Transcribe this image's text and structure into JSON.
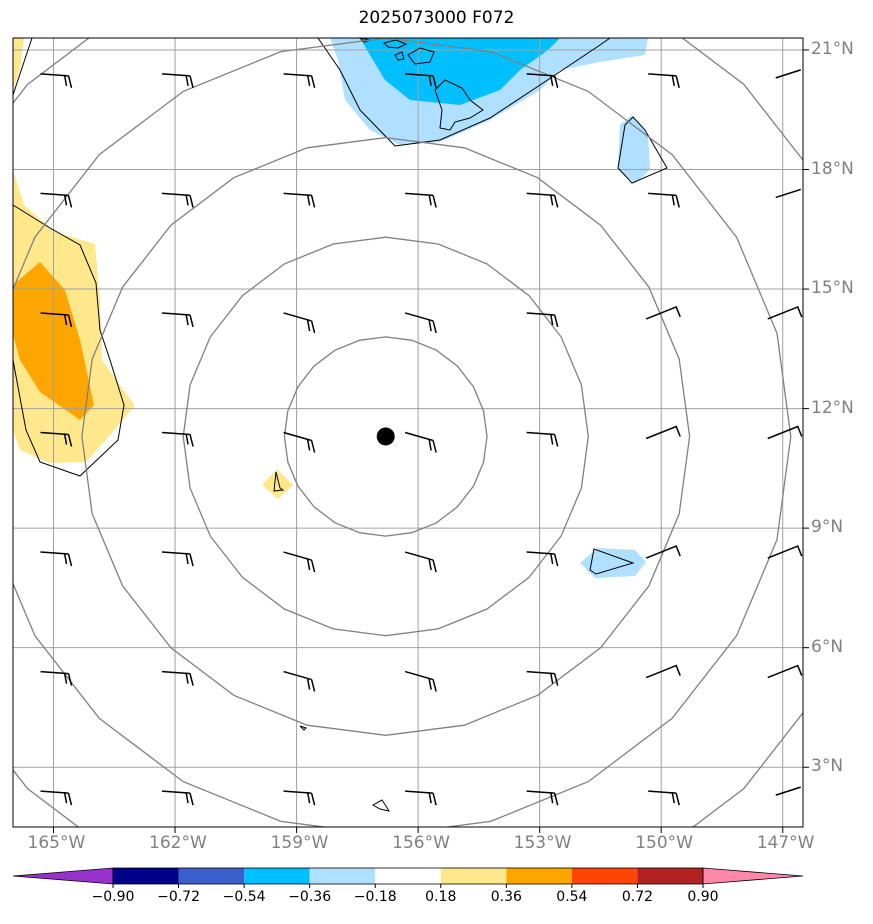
{
  "title": "2025073000 F072",
  "map": {
    "extent": {
      "lon_min": -166.0,
      "lon_max": -146.5,
      "lat_min": 1.5,
      "lat_max": 21.3
    },
    "lat_ticks": [
      {
        "value": 21,
        "label": "21°N"
      },
      {
        "value": 18,
        "label": "18°N"
      },
      {
        "value": 15,
        "label": "15°N"
      },
      {
        "value": 12,
        "label": "12°N"
      },
      {
        "value": 9,
        "label": "9°N"
      },
      {
        "value": 6,
        "label": "6°N"
      },
      {
        "value": 3,
        "label": "3°N"
      }
    ],
    "lon_ticks": [
      {
        "value": -165,
        "label": "165°W"
      },
      {
        "value": -162,
        "label": "162°W"
      },
      {
        "value": -159,
        "label": "159°W"
      },
      {
        "value": -156,
        "label": "156°W"
      },
      {
        "value": -153,
        "label": "153°W"
      },
      {
        "value": -150,
        "label": "150°W"
      },
      {
        "value": -147,
        "label": "147°W"
      }
    ],
    "grid": true,
    "center_marker": {
      "lon": -156.8,
      "lat": 11.3
    },
    "range_rings_deg": [
      2.5,
      5,
      7.5,
      10,
      12.5
    ],
    "colors": {
      "ring": "#808080",
      "grid": "#a0a0a0",
      "coast": "#000000",
      "barb": "#000000"
    }
  },
  "colorbar": {
    "ticks": [
      "−0.90",
      "−0.72",
      "−0.54",
      "−0.36",
      "−0.18",
      "0.18",
      "0.36",
      "0.54",
      "0.72",
      "0.90"
    ],
    "colors": [
      "#9932cc",
      "#00008b",
      "#3a5fcd",
      "#00bfff",
      "#b0e0ff",
      "#ffffff",
      "#ffe88c",
      "#ffa500",
      "#ff4500",
      "#b22222",
      "#ff88aa"
    ]
  }
}
